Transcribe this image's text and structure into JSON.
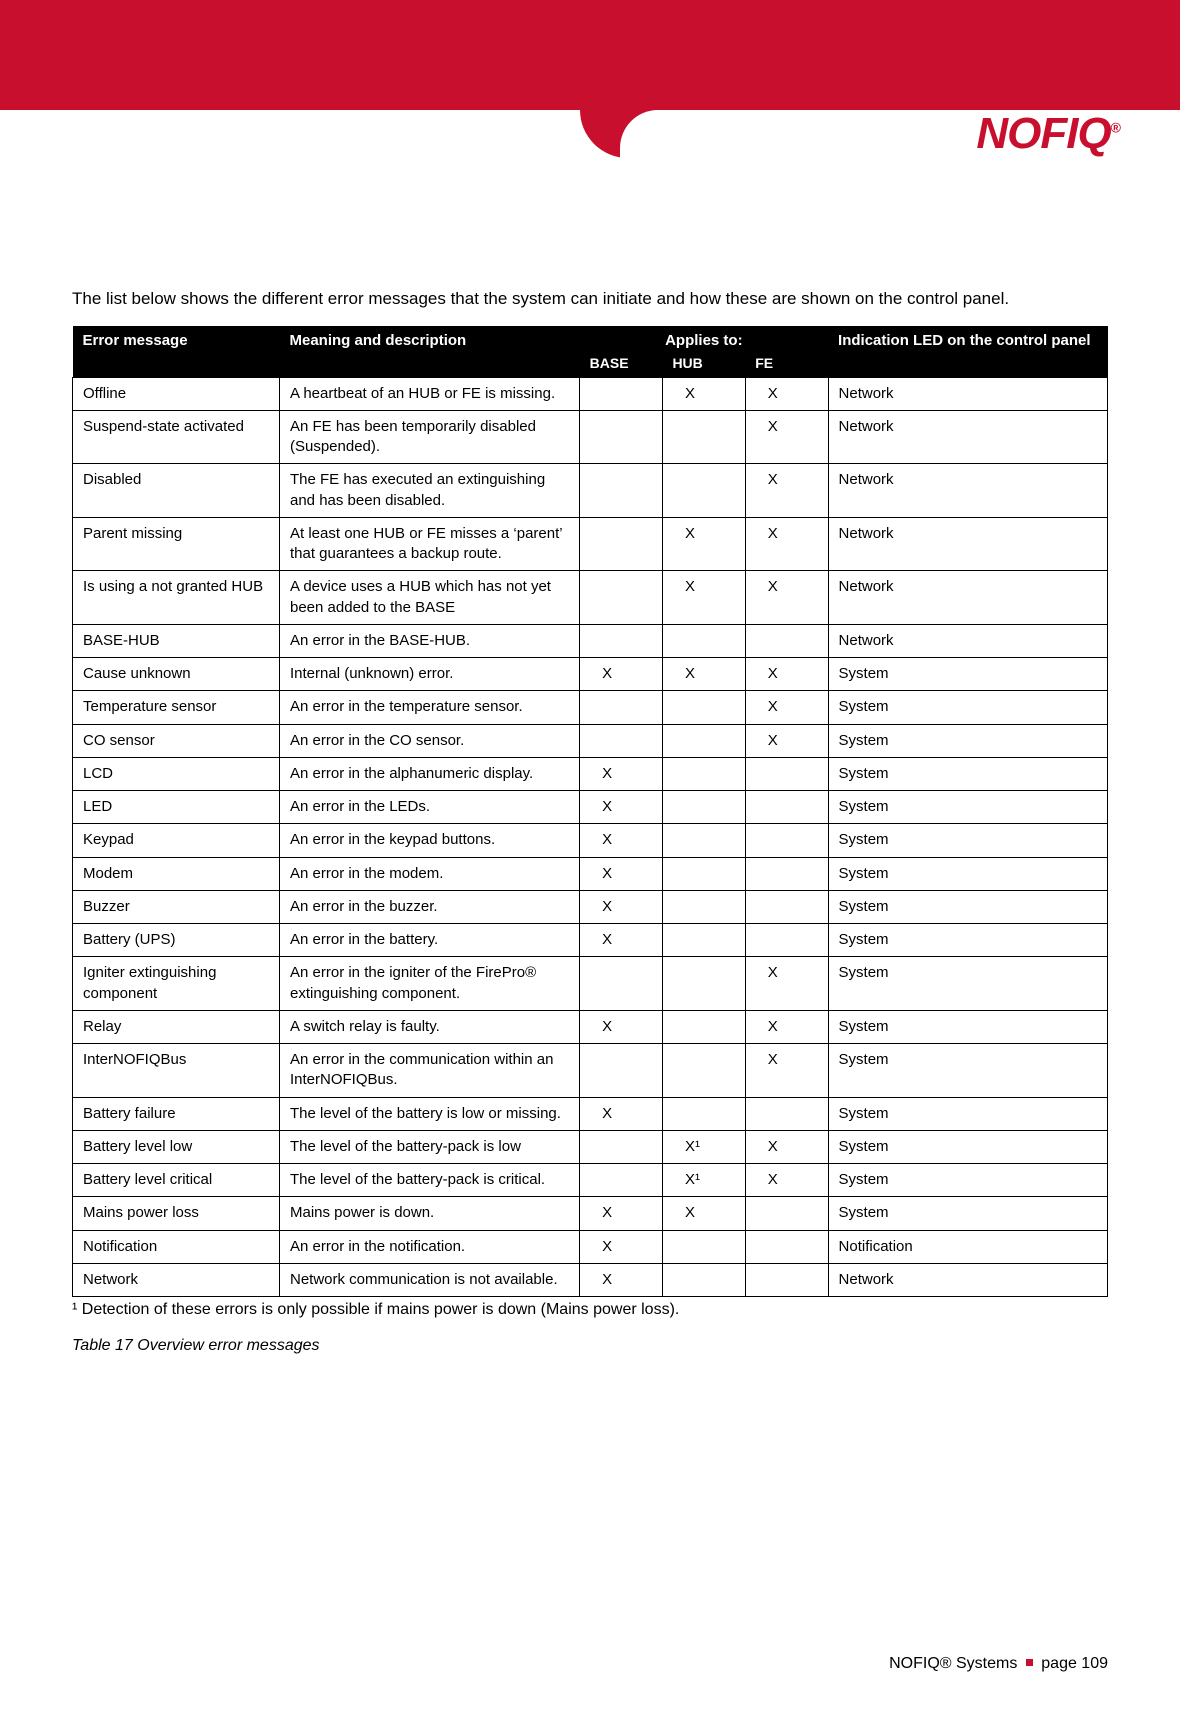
{
  "brand": {
    "name": "NOFIQ",
    "accent_color": "#c8102e"
  },
  "intro": "The list below shows the different error messages that the system can initiate and how these are shown on the control panel.",
  "table": {
    "headers": {
      "error_message": "Error message",
      "meaning": "Meaning and description",
      "applies_to": "Applies to:",
      "base": "BASE",
      "hub": "HUB",
      "fe": "FE",
      "led": "Indication LED on the control panel"
    },
    "rows": [
      {
        "msg": "Offline",
        "desc": "A heartbeat of an HUB or FE is missing.",
        "base": "",
        "hub": "X",
        "fe": "X",
        "led": "Network"
      },
      {
        "msg": "Suspend-state activated",
        "desc": "An FE has been temporarily disabled (Suspended).",
        "base": "",
        "hub": "",
        "fe": "X",
        "led": "Network"
      },
      {
        "msg": "Disabled",
        "desc": "The FE has executed an extinguishing and has been disabled.",
        "base": "",
        "hub": "",
        "fe": "X",
        "led": "Network"
      },
      {
        "msg": "Parent missing",
        "desc": "At least one HUB or FE misses a ‘parent’ that guarantees a backup route.",
        "base": "",
        "hub": "X",
        "fe": "X",
        "led": "Network"
      },
      {
        "msg": "Is using a not granted HUB",
        "desc": "A device uses a HUB which has not yet been added to the BASE",
        "base": "",
        "hub": "X",
        "fe": "X",
        "led": "Network"
      },
      {
        "msg": "BASE-HUB",
        "desc": "An error in the BASE-HUB.",
        "base": "",
        "hub": "",
        "fe": "",
        "led": "Network"
      },
      {
        "msg": "Cause unknown",
        "desc": "Internal (unknown) error.",
        "base": "X",
        "hub": "X",
        "fe": "X",
        "led": "System"
      },
      {
        "msg": "Temperature sensor",
        "desc": "An error in the temperature sensor.",
        "base": "",
        "hub": "",
        "fe": "X",
        "led": "System"
      },
      {
        "msg": "CO sensor",
        "desc": "An error in the CO sensor.",
        "base": "",
        "hub": "",
        "fe": "X",
        "led": "System"
      },
      {
        "msg": "LCD",
        "desc": "An error in the alphanumeric display.",
        "base": "X",
        "hub": "",
        "fe": "",
        "led": "System"
      },
      {
        "msg": "LED",
        "desc": "An error in the LEDs.",
        "base": "X",
        "hub": "",
        "fe": "",
        "led": "System"
      },
      {
        "msg": "Keypad",
        "desc": "An error in the keypad buttons.",
        "base": "X",
        "hub": "",
        "fe": "",
        "led": "System"
      },
      {
        "msg": "Modem",
        "desc": "An error in the modem.",
        "base": "X",
        "hub": "",
        "fe": "",
        "led": "System"
      },
      {
        "msg": "Buzzer",
        "desc": "An error in the buzzer.",
        "base": "X",
        "hub": "",
        "fe": "",
        "led": "System"
      },
      {
        "msg": "Battery (UPS)",
        "desc": "An error in the battery.",
        "base": "X",
        "hub": "",
        "fe": "",
        "led": "System"
      },
      {
        "msg": "Igniter extinguishing component",
        "desc": "An error in the igniter of the FirePro® extinguishing component.",
        "base": "",
        "hub": "",
        "fe": "X",
        "led": "System"
      },
      {
        "msg": "Relay",
        "desc": "A switch relay is faulty.",
        "base": "X",
        "hub": "",
        "fe": "X",
        "led": "System"
      },
      {
        "msg": "InterNOFIQBus",
        "desc": "An error in the communication within an InterNOFIQBus.",
        "base": "",
        "hub": "",
        "fe": "X",
        "led": "System"
      },
      {
        "msg": "Battery failure",
        "desc": "The level of the battery is low or missing.",
        "base": "X",
        "hub": "",
        "fe": "",
        "led": "System"
      },
      {
        "msg": "Battery level low",
        "desc": "The level of the battery-pack is low",
        "base": "",
        "hub": "X¹",
        "fe": "X",
        "led": "System"
      },
      {
        "msg": "Battery level critical",
        "desc": "The level of the battery-pack is critical.",
        "base": "",
        "hub": "X¹",
        "fe": "X",
        "led": "System"
      },
      {
        "msg": "Mains power loss",
        "desc": "Mains power is down.",
        "base": "X",
        "hub": "X",
        "fe": "",
        "led": "System"
      },
      {
        "msg": "Notification",
        "desc": "An error in the notification.",
        "base": "X",
        "hub": "",
        "fe": "",
        "led": "Notification"
      },
      {
        "msg": "Network",
        "desc": "Network communication is not available.",
        "base": "X",
        "hub": "",
        "fe": "",
        "led": "Network"
      }
    ]
  },
  "footnote": "¹ Detection of these errors is only possible if mains power is down (Mains power loss).",
  "caption": "Table 17 Overview error messages",
  "footer": {
    "brand": "NOFIQ® Systems",
    "page_label": "page 109"
  }
}
